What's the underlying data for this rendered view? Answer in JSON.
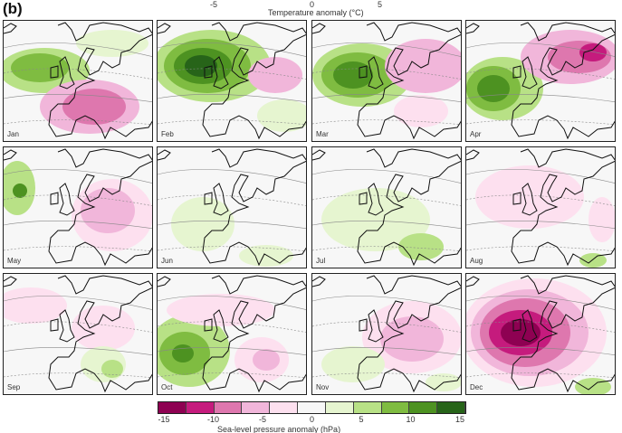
{
  "panel_letter": "(b)",
  "temperature_axis": {
    "label": "Temperature anomaly (°C)",
    "ticks": [
      "-5",
      "0",
      "5"
    ]
  },
  "months": [
    "Jan",
    "Feb",
    "Mar",
    "Apr",
    "May",
    "Jun",
    "Jul",
    "Aug",
    "Sep",
    "Oct",
    "Nov",
    "Dec"
  ],
  "colorbar": {
    "label": "Sea-level pressure anomaly (hPa)",
    "ticks": [
      "-15",
      "-10",
      "-5",
      "0",
      "5",
      "10",
      "15"
    ],
    "colors": [
      "#8e0152",
      "#c51b7d",
      "#de77ae",
      "#f1b6da",
      "#fde0ef",
      "#f7f7f7",
      "#e6f5d0",
      "#b8e186",
      "#7fbc41",
      "#4d9221",
      "#276419"
    ]
  }
}
